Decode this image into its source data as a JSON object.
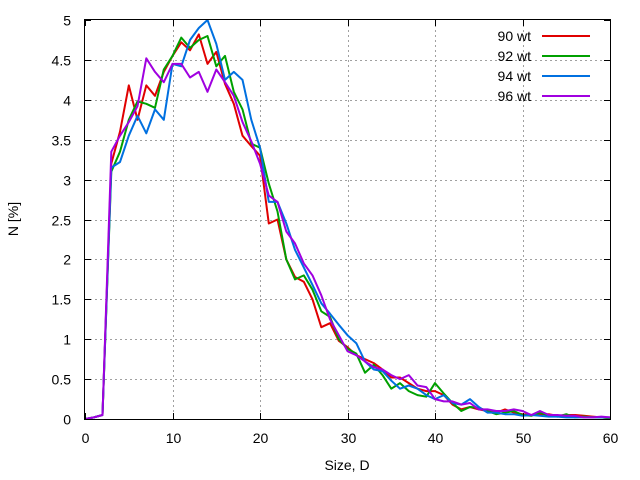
{
  "chart_data": {
    "type": "line",
    "title": "",
    "xlabel": "Size, D",
    "ylabel": "N [%]",
    "xlim": [
      0,
      60
    ],
    "ylim": [
      0,
      5
    ],
    "xticks": [
      0,
      10,
      20,
      30,
      40,
      50,
      60
    ],
    "yticks": [
      0,
      0.5,
      1,
      1.5,
      2,
      2.5,
      3,
      3.5,
      4,
      4.5,
      5
    ],
    "xtick_labels": [
      "0",
      "10",
      "20",
      "30",
      "40",
      "50",
      "60"
    ],
    "ytick_labels": [
      "0",
      "0.5",
      "1",
      "1.5",
      "2",
      "2.5",
      "3",
      "3.5",
      "4",
      "4.5",
      "5"
    ],
    "grid": true,
    "legend_position": "top-right",
    "series": [
      {
        "name": "90 wt",
        "color": "#e00000",
        "x": [
          0,
          1,
          2,
          3,
          4,
          5,
          6,
          7,
          8,
          9,
          10,
          11,
          12,
          13,
          14,
          15,
          16,
          17,
          18,
          19,
          20,
          21,
          22,
          23,
          24,
          25,
          26,
          27,
          28,
          29,
          30,
          31,
          32,
          33,
          34,
          35,
          36,
          37,
          38,
          39,
          40,
          41,
          42,
          43,
          44,
          45,
          46,
          47,
          48,
          49,
          50,
          51,
          52,
          53,
          54,
          55,
          56,
          57,
          58,
          59,
          60
        ],
        "y": [
          0,
          0.02,
          0.05,
          3.2,
          3.6,
          4.18,
          3.75,
          4.18,
          4.05,
          4.35,
          4.55,
          4.72,
          4.62,
          4.82,
          4.45,
          4.6,
          4.2,
          3.95,
          3.55,
          3.42,
          3.3,
          2.45,
          2.5,
          2.0,
          1.78,
          1.72,
          1.5,
          1.15,
          1.2,
          0.98,
          0.9,
          0.8,
          0.75,
          0.7,
          0.62,
          0.52,
          0.52,
          0.45,
          0.38,
          0.35,
          0.35,
          0.3,
          0.18,
          0.12,
          0.15,
          0.12,
          0.1,
          0.08,
          0.12,
          0.08,
          0.06,
          0.05,
          0.06,
          0.06,
          0.04,
          0.05,
          0.05,
          0.04,
          0.03,
          0.02,
          0.01
        ]
      },
      {
        "name": "92 wt",
        "color": "#00a000",
        "x": [
          0,
          1,
          2,
          3,
          4,
          5,
          6,
          7,
          8,
          9,
          10,
          11,
          12,
          13,
          14,
          15,
          16,
          17,
          18,
          19,
          20,
          21,
          22,
          23,
          24,
          25,
          26,
          27,
          28,
          29,
          30,
          31,
          32,
          33,
          34,
          35,
          36,
          37,
          38,
          39,
          40,
          41,
          42,
          43,
          44,
          45,
          46,
          47,
          48,
          49,
          50,
          51,
          52,
          53,
          54,
          55,
          56,
          57,
          58,
          59,
          60
        ],
        "y": [
          0,
          0.02,
          0.05,
          3.1,
          3.35,
          3.75,
          3.98,
          3.95,
          3.9,
          4.38,
          4.55,
          4.78,
          4.65,
          4.75,
          4.8,
          4.42,
          4.55,
          4.1,
          3.88,
          3.45,
          3.4,
          2.95,
          2.6,
          2.0,
          1.75,
          1.8,
          1.62,
          1.35,
          1.28,
          1.0,
          0.88,
          0.82,
          0.58,
          0.68,
          0.55,
          0.38,
          0.45,
          0.35,
          0.3,
          0.28,
          0.45,
          0.32,
          0.2,
          0.1,
          0.15,
          0.14,
          0.1,
          0.06,
          0.08,
          0.1,
          0.05,
          0.04,
          0.08,
          0.04,
          0.03,
          0.06,
          0.02,
          0.03,
          0.02,
          0.02,
          0.01
        ]
      },
      {
        "name": "94 wt",
        "color": "#0070e0",
        "x": [
          0,
          1,
          2,
          3,
          4,
          5,
          6,
          7,
          8,
          9,
          10,
          11,
          12,
          13,
          14,
          15,
          16,
          17,
          18,
          19,
          20,
          21,
          22,
          23,
          24,
          25,
          26,
          27,
          28,
          29,
          30,
          31,
          32,
          33,
          34,
          35,
          36,
          37,
          38,
          39,
          40,
          41,
          42,
          43,
          44,
          45,
          46,
          47,
          48,
          49,
          50,
          51,
          52,
          53,
          54,
          55,
          56,
          57,
          58,
          59,
          60
        ],
        "y": [
          0,
          0.02,
          0.05,
          3.15,
          3.22,
          3.55,
          3.8,
          3.58,
          3.88,
          3.75,
          4.45,
          4.42,
          4.75,
          4.9,
          5.0,
          4.7,
          4.25,
          4.35,
          4.25,
          3.75,
          3.4,
          2.72,
          2.72,
          2.45,
          2.12,
          1.9,
          1.68,
          1.45,
          1.32,
          1.18,
          1.05,
          0.95,
          0.72,
          0.62,
          0.6,
          0.48,
          0.38,
          0.42,
          0.38,
          0.3,
          0.25,
          0.3,
          0.2,
          0.18,
          0.25,
          0.15,
          0.08,
          0.08,
          0.06,
          0.06,
          0.04,
          0.05,
          0.04,
          0.03,
          0.03,
          0.02,
          0.02,
          0.02,
          0.02,
          0.02,
          0.02
        ]
      },
      {
        "name": "96 wt",
        "color": "#a000e0",
        "x": [
          0,
          1,
          2,
          3,
          4,
          5,
          6,
          7,
          8,
          9,
          10,
          11,
          12,
          13,
          14,
          15,
          16,
          17,
          18,
          19,
          20,
          21,
          22,
          23,
          24,
          25,
          26,
          27,
          28,
          29,
          30,
          31,
          32,
          33,
          34,
          35,
          36,
          37,
          38,
          39,
          40,
          41,
          42,
          43,
          44,
          45,
          46,
          47,
          48,
          49,
          50,
          51,
          52,
          53,
          54,
          55,
          56,
          57,
          58,
          59,
          60
        ],
        "y": [
          0,
          0.02,
          0.05,
          3.35,
          3.55,
          3.72,
          3.92,
          4.52,
          4.35,
          4.22,
          4.45,
          4.45,
          4.28,
          4.35,
          4.1,
          4.38,
          4.22,
          4.05,
          3.72,
          3.48,
          3.2,
          2.8,
          2.72,
          2.35,
          2.2,
          1.95,
          1.8,
          1.55,
          1.25,
          1.05,
          0.85,
          0.8,
          0.72,
          0.65,
          0.62,
          0.55,
          0.5,
          0.55,
          0.42,
          0.4,
          0.25,
          0.22,
          0.22,
          0.18,
          0.2,
          0.12,
          0.12,
          0.1,
          0.1,
          0.12,
          0.1,
          0.05,
          0.1,
          0.05,
          0.05,
          0.04,
          0.04,
          0.02,
          0.02,
          0.03,
          0.02
        ]
      }
    ]
  }
}
